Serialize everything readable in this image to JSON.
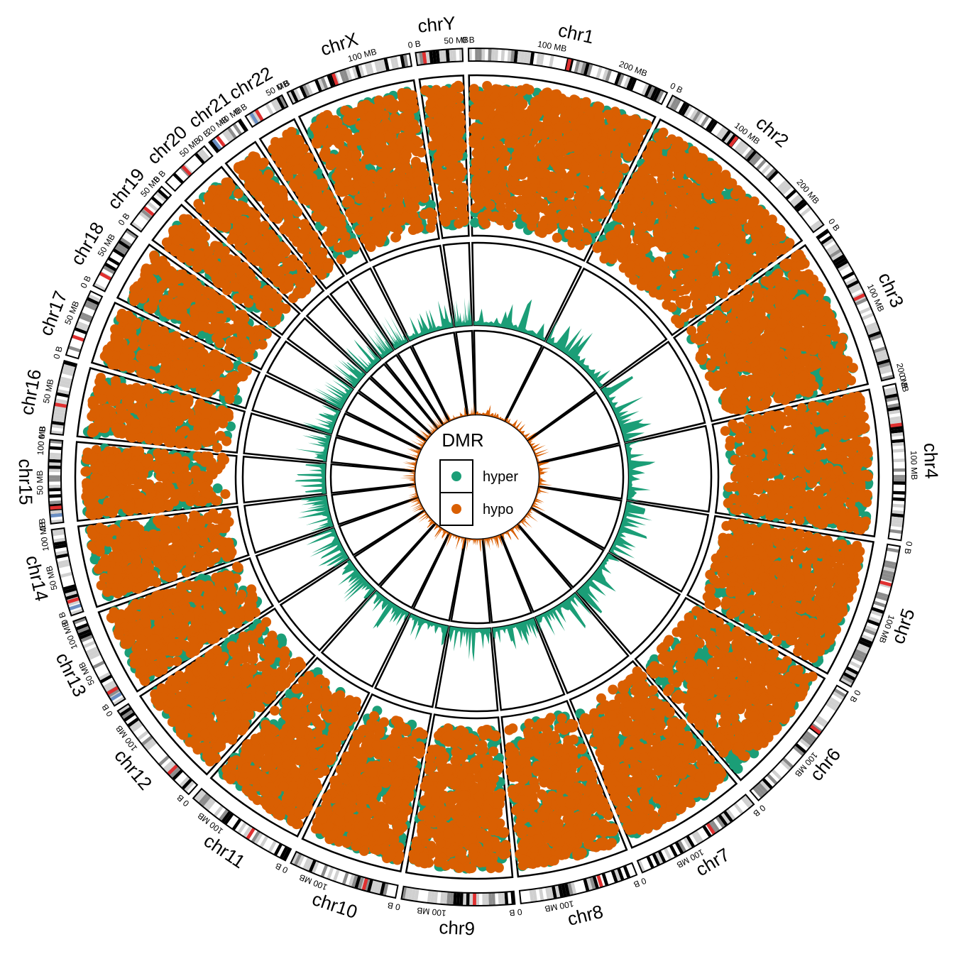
{
  "chart_data": {
    "type": "scatter",
    "layout": "circos",
    "legend": {
      "title": "DMR",
      "placement": "center",
      "entries": [
        {
          "label": "hyper",
          "color": "#1b9e77"
        },
        {
          "label": "hypo",
          "color": "#d95f02"
        }
      ]
    },
    "colors": {
      "hyper": "#1b9e77",
      "hypo": "#d95f02",
      "centromere": "#e03030",
      "stalk": "#6a8fc4",
      "band_dark": "#000000",
      "band_gray": "#8c8c8c",
      "band_light": "#d0d0d0"
    },
    "chromosomes": [
      {
        "name": "chr1",
        "length_mb": 249,
        "ticks": [
          "0 B",
          "100 MB",
          "200 MB"
        ],
        "tick_values_mb": [
          0,
          100,
          200
        ],
        "centromere_mb": 124
      },
      {
        "name": "chr2",
        "length_mb": 243,
        "ticks": [
          "0 B",
          "100 MB",
          "200 MB"
        ],
        "tick_values_mb": [
          0,
          100,
          200
        ],
        "centromere_mb": 93
      },
      {
        "name": "chr3",
        "length_mb": 198,
        "ticks": [
          "0 B",
          "100 MB",
          "200 MB"
        ],
        "tick_values_mb": [
          0,
          100,
          200
        ],
        "centromere_mb": 91
      },
      {
        "name": "chr4",
        "length_mb": 191,
        "ticks": [
          "0 B",
          "100 MB"
        ],
        "tick_values_mb": [
          0,
          100
        ],
        "centromere_mb": 50
      },
      {
        "name": "chr5",
        "length_mb": 181,
        "ticks": [
          "0 B",
          "100 MB"
        ],
        "tick_values_mb": [
          0,
          100
        ],
        "centromere_mb": 48
      },
      {
        "name": "chr6",
        "length_mb": 171,
        "ticks": [
          "0 B",
          "100 MB"
        ],
        "tick_values_mb": [
          0,
          100
        ],
        "centromere_mb": 60
      },
      {
        "name": "chr7",
        "length_mb": 159,
        "ticks": [
          "0 B",
          "100 MB"
        ],
        "tick_values_mb": [
          0,
          100
        ],
        "centromere_mb": 60
      },
      {
        "name": "chr8",
        "length_mb": 145,
        "ticks": [
          "0 B",
          "100 MB"
        ],
        "tick_values_mb": [
          0,
          100
        ],
        "centromere_mb": 45
      },
      {
        "name": "chr9",
        "length_mb": 138,
        "ticks": [
          "0 B",
          "100 MB"
        ],
        "tick_values_mb": [
          0,
          100
        ],
        "centromere_mb": 49
      },
      {
        "name": "chr10",
        "length_mb": 134,
        "ticks": [
          "0 B",
          "100 MB"
        ],
        "tick_values_mb": [
          0,
          100
        ],
        "centromere_mb": 40
      },
      {
        "name": "chr11",
        "length_mb": 135,
        "ticks": [
          "0 B",
          "100 MB"
        ],
        "tick_values_mb": [
          0,
          100
        ],
        "centromere_mb": 53
      },
      {
        "name": "chr12",
        "length_mb": 133,
        "ticks": [
          "0 B",
          "100 MB"
        ],
        "tick_values_mb": [
          0,
          100
        ],
        "centromere_mb": 35
      },
      {
        "name": "chr13",
        "length_mb": 114,
        "ticks": [
          "0 B",
          "50 MB",
          "100 MB"
        ],
        "tick_values_mb": [
          0,
          50,
          100
        ],
        "centromere_mb": 17
      },
      {
        "name": "chr14",
        "length_mb": 107,
        "ticks": [
          "0 B",
          "50 MB",
          "100 MB"
        ],
        "tick_values_mb": [
          0,
          50,
          100
        ],
        "centromere_mb": 17
      },
      {
        "name": "chr15",
        "length_mb": 102,
        "ticks": [
          "0 B",
          "50 MB",
          "100 MB"
        ],
        "tick_values_mb": [
          0,
          50,
          100
        ],
        "centromere_mb": 19
      },
      {
        "name": "chr16",
        "length_mb": 90,
        "ticks": [
          "0 B",
          "50 MB"
        ],
        "tick_values_mb": [
          0,
          50
        ],
        "centromere_mb": 36
      },
      {
        "name": "chr17",
        "length_mb": 83,
        "ticks": [
          "0 B",
          "50 MB"
        ],
        "tick_values_mb": [
          0,
          50
        ],
        "centromere_mb": 24
      },
      {
        "name": "chr18",
        "length_mb": 80,
        "ticks": [
          "0 B",
          "50 MB"
        ],
        "tick_values_mb": [
          0,
          50
        ],
        "centromere_mb": 17
      },
      {
        "name": "chr19",
        "length_mb": 59,
        "ticks": [
          "0 B",
          "50 MB"
        ],
        "tick_values_mb": [
          0,
          50
        ],
        "centromere_mb": 26
      },
      {
        "name": "chr20",
        "length_mb": 64,
        "ticks": [
          "0 B",
          "50 MB"
        ],
        "tick_values_mb": [
          0,
          50
        ],
        "centromere_mb": 28
      },
      {
        "name": "chr21",
        "length_mb": 47,
        "ticks": [
          "0 B",
          "20 MB",
          "40 MB"
        ],
        "tick_values_mb": [
          0,
          20,
          40
        ],
        "centromere_mb": 12
      },
      {
        "name": "chr22",
        "length_mb": 51,
        "ticks": [
          "0 B",
          "50 MB"
        ],
        "tick_values_mb": [
          0,
          50
        ],
        "centromere_mb": 15
      },
      {
        "name": "chrX",
        "length_mb": 156,
        "ticks": [
          "0 B",
          "100 MB"
        ],
        "tick_values_mb": [
          0,
          100
        ],
        "centromere_mb": 60
      },
      {
        "name": "chrY",
        "length_mb": 57,
        "ticks": [
          "0 B",
          "50 MB"
        ],
        "tick_values_mb": [
          0,
          50
        ],
        "centromere_mb": 10
      }
    ]
  }
}
